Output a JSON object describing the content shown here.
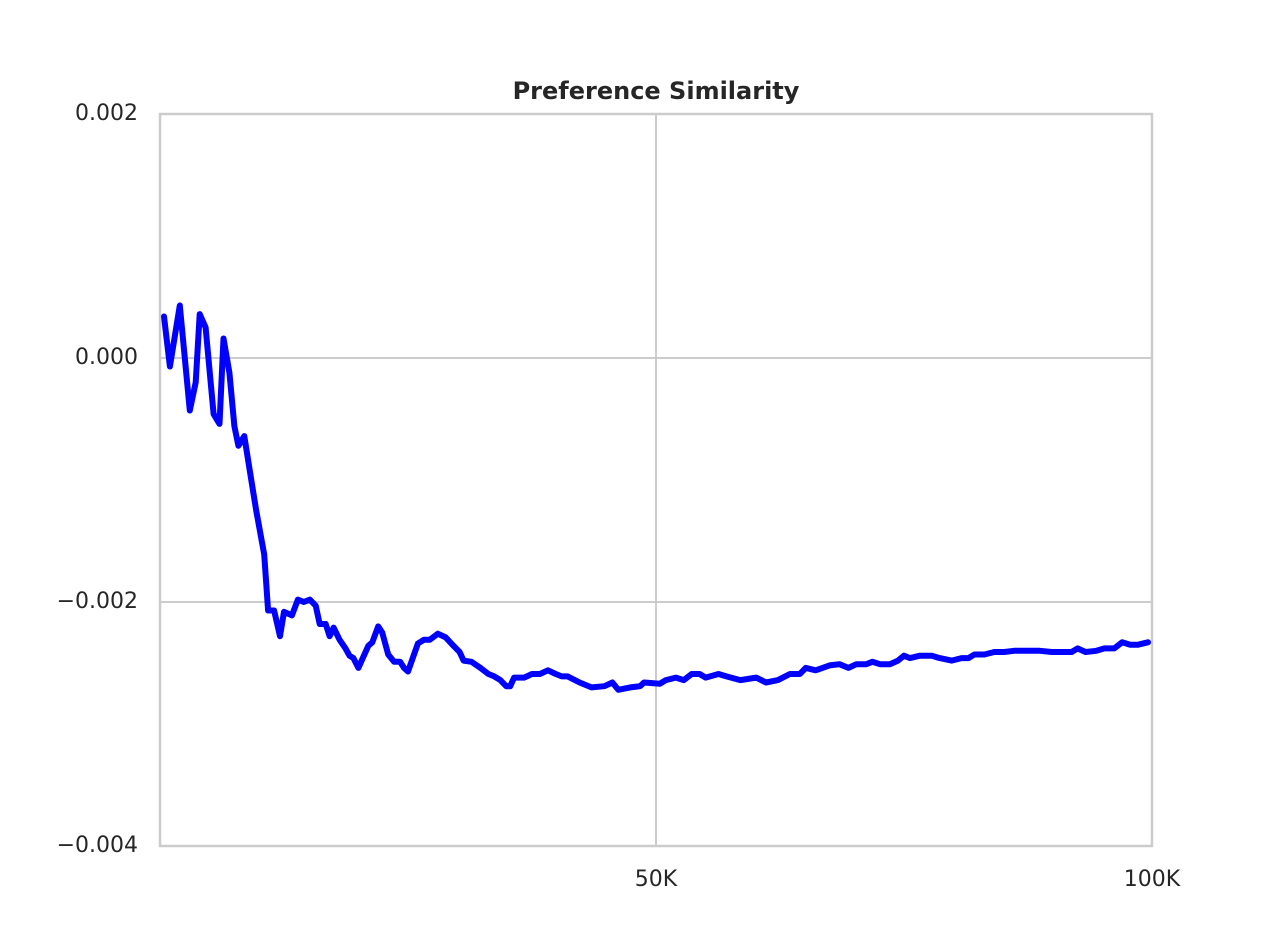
{
  "chart_data": {
    "type": "line",
    "title": "Preference Similarity",
    "x": [
      400,
      1000,
      2000,
      3000,
      3600,
      4000,
      4600,
      5400,
      6000,
      6400,
      7000,
      7500,
      7900,
      8500,
      9100,
      9700,
      10500,
      10900,
      11500,
      12100,
      12500,
      13300,
      13900,
      14500,
      15100,
      15700,
      16100,
      16700,
      17100,
      17500,
      18100,
      18700,
      19100,
      19500,
      20000,
      21000,
      21400,
      22000,
      22400,
      23000,
      23600,
      24200,
      24600,
      25000,
      26000,
      26600,
      27200,
      28000,
      28800,
      29600,
      30200,
      30600,
      31400,
      32300,
      33100,
      33700,
      34300,
      34900,
      35300,
      35700,
      36700,
      37500,
      38300,
      39100,
      39900,
      40500,
      41100,
      42300,
      43500,
      44800,
      45600,
      46200,
      47400,
      48400,
      48800,
      50400,
      51000,
      52000,
      52800,
      53600,
      54400,
      55000,
      56300,
      57100,
      58500,
      60100,
      61100,
      62300,
      63500,
      64500,
      65100,
      66100,
      67500,
      68500,
      69400,
      70200,
      71200,
      71800,
      72600,
      73600,
      74400,
      75000,
      75600,
      76600,
      77800,
      78600,
      79800,
      80800,
      81500,
      82100,
      83100,
      84100,
      85100,
      86100,
      87300,
      88700,
      89900,
      90900,
      91900,
      92500,
      93300,
      94400,
      95200,
      96200,
      97000,
      97800,
      98600,
      99600
    ],
    "series": [
      {
        "name": "Preference Similarity",
        "color": "#0000ff",
        "values": [
          0.00034,
          -7e-05,
          0.00043,
          -0.00043,
          -0.0002,
          0.00036,
          0.00025,
          -0.00046,
          -0.00054,
          0.00016,
          -0.00012,
          -0.00056,
          -0.00072,
          -0.00064,
          -0.00095,
          -0.00125,
          -0.00161,
          -0.00207,
          -0.00207,
          -0.00228,
          -0.00208,
          -0.00211,
          -0.00198,
          -0.002,
          -0.00198,
          -0.00203,
          -0.00218,
          -0.00218,
          -0.00228,
          -0.00221,
          -0.00231,
          -0.00238,
          -0.00244,
          -0.00246,
          -0.00254,
          -0.00236,
          -0.00233,
          -0.0022,
          -0.00225,
          -0.00243,
          -0.00249,
          -0.00249,
          -0.00254,
          -0.00257,
          -0.00234,
          -0.00231,
          -0.00231,
          -0.00226,
          -0.00229,
          -0.00236,
          -0.00241,
          -0.00248,
          -0.00249,
          -0.00254,
          -0.00259,
          -0.00261,
          -0.00264,
          -0.00269,
          -0.00269,
          -0.00262,
          -0.00262,
          -0.00259,
          -0.00259,
          -0.00256,
          -0.00259,
          -0.00261,
          -0.00261,
          -0.00266,
          -0.0027,
          -0.00269,
          -0.00266,
          -0.00272,
          -0.0027,
          -0.00269,
          -0.00266,
          -0.00267,
          -0.00264,
          -0.00262,
          -0.00264,
          -0.00259,
          -0.00259,
          -0.00262,
          -0.00259,
          -0.00261,
          -0.00264,
          -0.00262,
          -0.00266,
          -0.00264,
          -0.00259,
          -0.00259,
          -0.00254,
          -0.00256,
          -0.00252,
          -0.00251,
          -0.00254,
          -0.00251,
          -0.00251,
          -0.00249,
          -0.00251,
          -0.00251,
          -0.00248,
          -0.00244,
          -0.00246,
          -0.00244,
          -0.00244,
          -0.00246,
          -0.00248,
          -0.00246,
          -0.00246,
          -0.00243,
          -0.00243,
          -0.00241,
          -0.00241,
          -0.0024,
          -0.0024,
          -0.0024,
          -0.00241,
          -0.00241,
          -0.00241,
          -0.00238,
          -0.00241,
          -0.0024,
          -0.00238,
          -0.00238,
          -0.00233,
          -0.00235,
          -0.00235,
          -0.00233
        ]
      }
    ],
    "xlim": [
      0,
      100000
    ],
    "xticks": [
      {
        "value": 50000,
        "label": "50K"
      },
      {
        "value": 100000,
        "label": "100K"
      }
    ],
    "ylim": [
      -0.004,
      0.002
    ],
    "yticks": [
      {
        "value": -0.004,
        "label": "−0.004"
      },
      {
        "value": -0.002,
        "label": "−0.002"
      },
      {
        "value": 0,
        "label": "0.000"
      },
      0.002
    ],
    "grid": true
  }
}
